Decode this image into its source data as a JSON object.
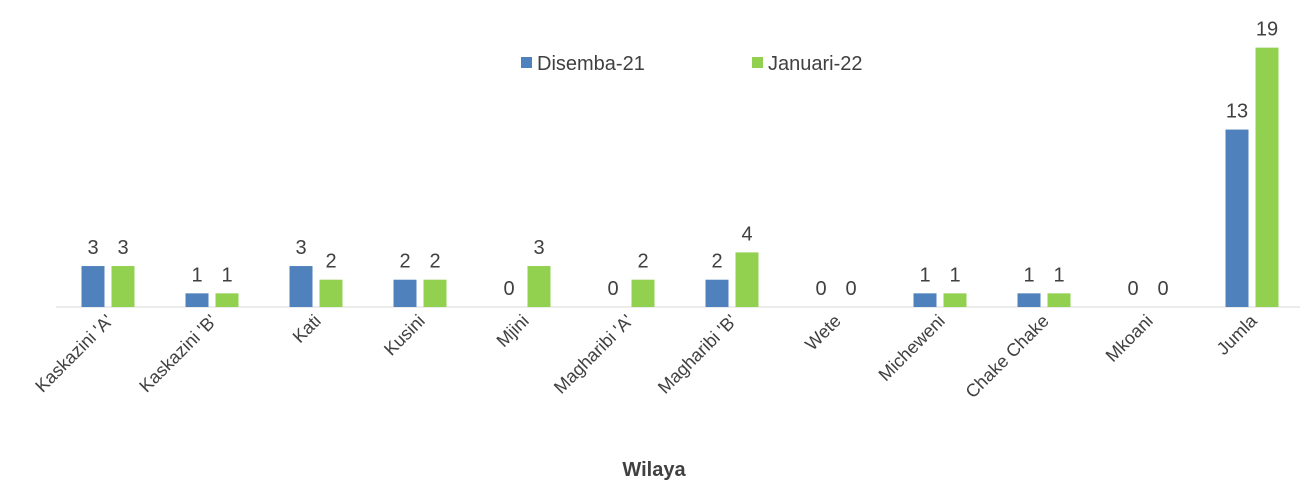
{
  "chart_data": {
    "type": "bar",
    "x_label": "Wilaya",
    "categories": [
      "Kaskazini 'A'",
      "Kaskazini 'B'",
      "Kati",
      "Kusini",
      "Mjini",
      "Magharibi 'A'",
      "Magharibi 'B'",
      "Wete",
      "Micheweni",
      "Chake Chake",
      "Mkoani",
      "Jumla"
    ],
    "series": [
      {
        "name": "Disemba-21",
        "color": "#4f81bd",
        "values": [
          3,
          1,
          3,
          2,
          0,
          0,
          2,
          0,
          1,
          1,
          0,
          13
        ]
      },
      {
        "name": "Januari-22",
        "color": "#92d050",
        "values": [
          3,
          1,
          2,
          2,
          3,
          2,
          4,
          0,
          1,
          1,
          0,
          19
        ]
      }
    ]
  }
}
